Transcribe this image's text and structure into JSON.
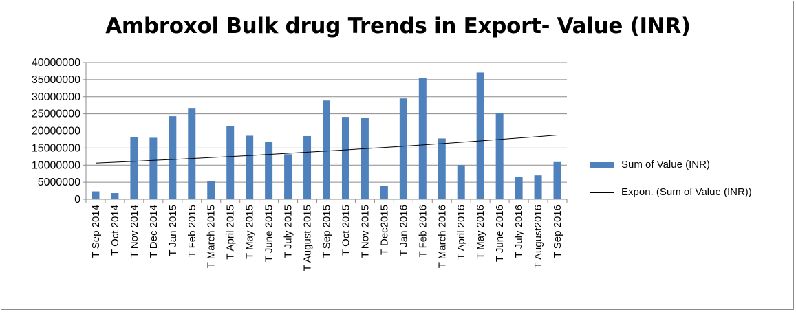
{
  "chart_data": {
    "type": "bar",
    "title": "Ambroxol Bulk drug Trends in Export-  Value (INR)",
    "xlabel": "",
    "ylabel": "",
    "ylim": [
      0,
      40000000
    ],
    "yticks": [
      "0",
      "5000000",
      "10000000",
      "15000000",
      "20000000",
      "25000000",
      "30000000",
      "35000000",
      "40000000"
    ],
    "grid": true,
    "legend_position": "right",
    "categories": [
      "T Sep 2014",
      "T Oct 2014",
      "T Nov 2014",
      "T Dec 2014",
      "T Jan 2015",
      "T Feb 2015",
      "T March 2015",
      "T April 2015",
      "T May 2015",
      "T June 2015",
      "T July 2015",
      "T August 2015",
      "T Sep 2015",
      "T Oct 2015",
      "T Nov 2015",
      "T Dec2015",
      "T Jan 2016",
      "T Feb 2016",
      "T March 2016",
      "T April 2016",
      "T May 2016",
      "T June 2016",
      "T July 2016",
      "T August2016",
      "T Sep 2016"
    ],
    "series": [
      {
        "name": "Sum of Value (INR)",
        "color": "#4f81bd",
        "values": [
          2300000,
          1800000,
          18200000,
          18000000,
          24300000,
          26700000,
          5400000,
          21400000,
          18600000,
          16700000,
          13200000,
          18500000,
          28900000,
          24100000,
          23800000,
          3900000,
          29500000,
          35500000,
          17800000,
          10000000,
          37100000,
          25300000,
          6500000,
          7000000,
          10900000
        ]
      }
    ],
    "trendline": {
      "name": "Expon. (Sum of Value (INR))",
      "type": "exponential",
      "color": "#000000",
      "start_value": 10600000,
      "end_value": 18800000
    }
  }
}
